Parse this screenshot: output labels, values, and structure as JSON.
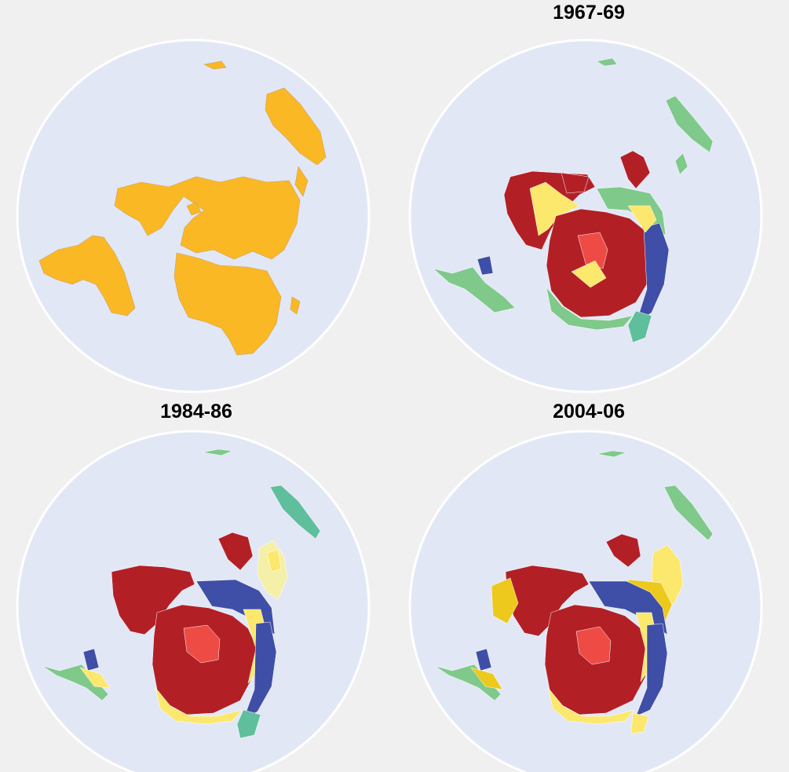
{
  "panels": [
    {
      "title": ""
    },
    {
      "title": "1967-69"
    },
    {
      "title": "1984-86"
    },
    {
      "title": "2004-06"
    }
  ],
  "colors": {
    "background": "#f0f0f0",
    "ocean": "#e2e7f6",
    "disc_border": "#ffffff",
    "land_default": "#fbb825",
    "dark_red": "#b22026",
    "light_red": "#ee4b45",
    "yellow": "#fbe86c",
    "pale_yellow": "#f4f0a8",
    "gold": "#ecc91c",
    "blue": "#3f4ea6",
    "green": "#7fc98a",
    "teal": "#5fbf9c"
  }
}
